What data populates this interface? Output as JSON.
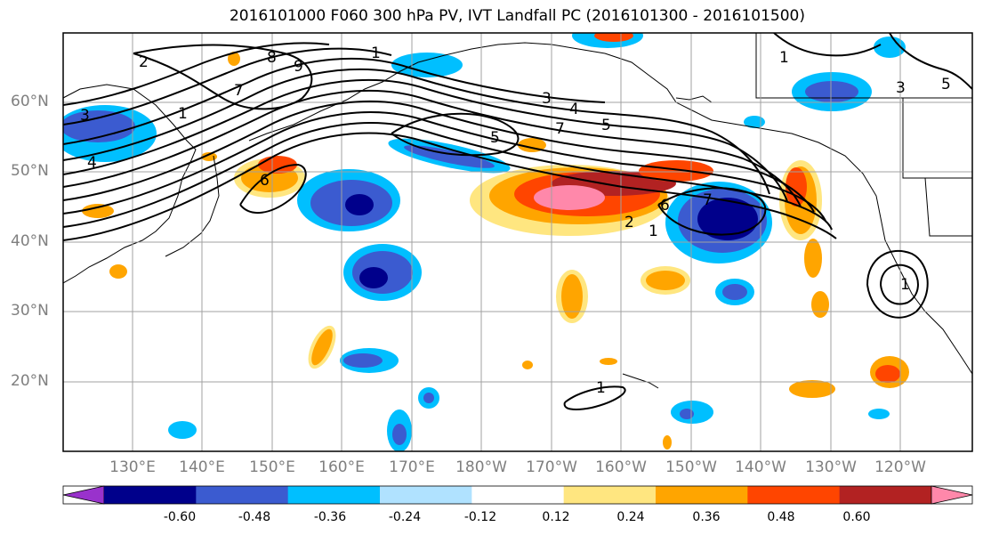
{
  "title": "2016101000 F060 300 hPa PV, IVT Landfall PC (2016101300 - 2016101500)",
  "lat_labels": [
    "60°N",
    "50°N",
    "40°N",
    "30°N",
    "20°N"
  ],
  "lon_labels": [
    "130°E",
    "140°E",
    "150°E",
    "160°E",
    "170°E",
    "180°W",
    "170°W",
    "160°W",
    "150°W",
    "140°W",
    "130°W",
    "120°W"
  ],
  "contour_labels": [
    "2",
    "3",
    "4",
    "1",
    "7",
    "8",
    "9",
    "1",
    "5",
    "6",
    "3",
    "4",
    "7",
    "5",
    "6",
    "7",
    "2",
    "1",
    "1",
    "1",
    "3",
    "5",
    "1"
  ],
  "colorbar": {
    "colors": [
      "#9932CC",
      "#00008B",
      "#3B5BD0",
      "#00BFFF",
      "#B0E2FF",
      "#FFFFFF",
      "#FFE680",
      "#FFA500",
      "#FF4500",
      "#B22222",
      "#FF88AA"
    ],
    "tick_labels": [
      "-0.60",
      "-0.48",
      "-0.36",
      "-0.24",
      "-0.12",
      "0.12",
      "0.24",
      "0.36",
      "0.48",
      "0.60"
    ]
  }
}
